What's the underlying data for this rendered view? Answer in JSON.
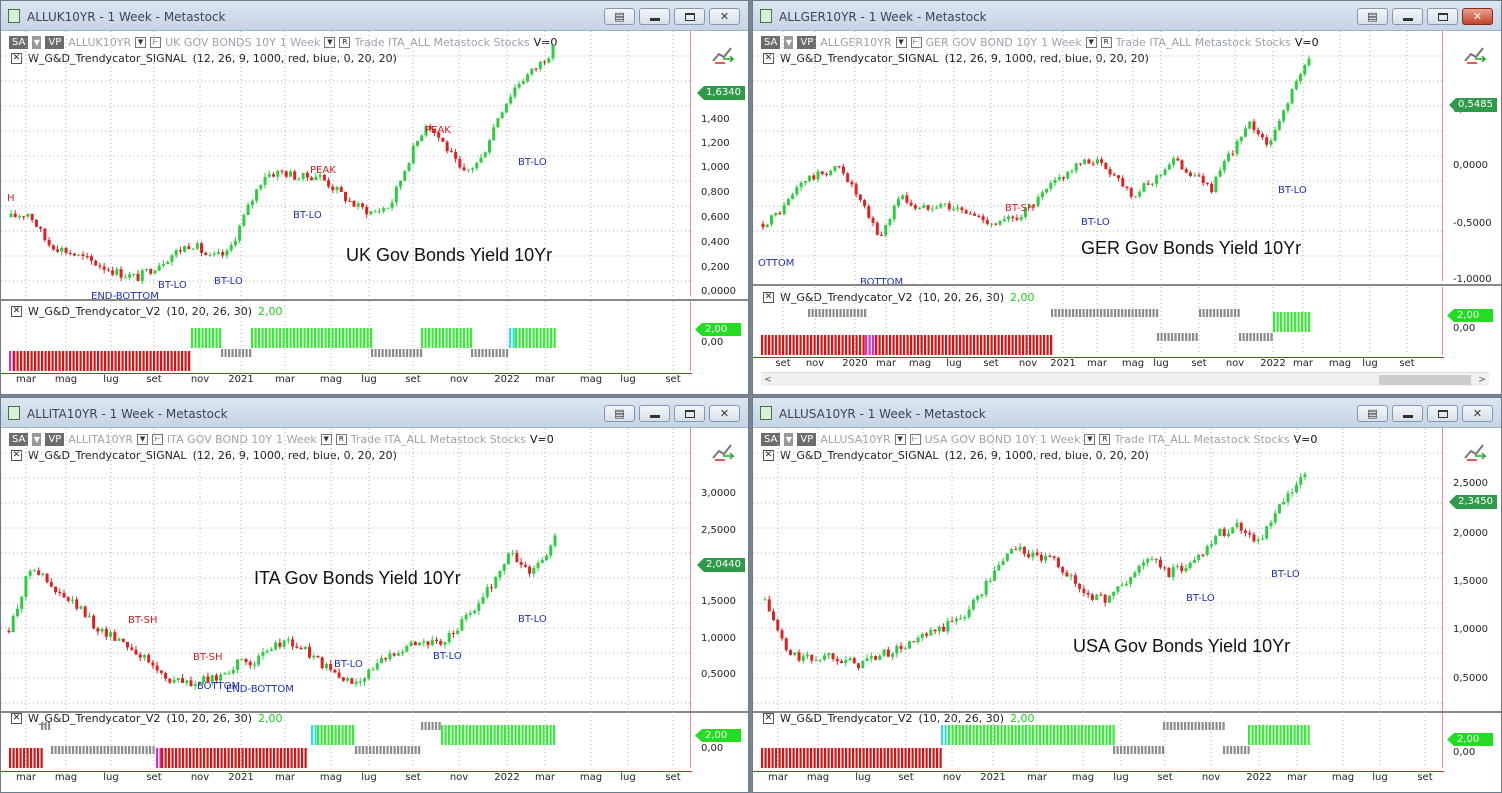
{
  "windows": [
    {
      "id": "uk",
      "title": "ALLUK10YR - 1 Week - Metastock",
      "symbol": "ALLUK10YR",
      "name": "UK GOV BONDS 10Y",
      "period": "1 Week",
      "tb_rest": "Trade  ITA_ALL   Metastock  Stocks",
      "v0": "V=0",
      "signal_name": "W_G&D_Trendycator_SIGNAL",
      "signal_params": "(12, 26, 9, 1000, red, blue, 0, 20, 20)",
      "ind_name": "W_G&D_Trendycator_V2",
      "ind_params": "(10, 20, 26, 30)",
      "ind_value": "2,00",
      "price_tag": "1,6340",
      "ind_tag": "2,00",
      "ind_zero": "0,00",
      "caption": "UK Gov Bonds Yield 10Yr",
      "y_labels": [
        "1,400",
        "1,200",
        "1,000",
        "0,800",
        "0,600",
        "0,400",
        "0,200",
        "0,0000"
      ],
      "x_labels": [
        "mar",
        "mag",
        "lug",
        "set",
        "nov",
        "2021",
        "mar",
        "mag",
        "lug",
        "set",
        "nov",
        "2022",
        "mar",
        "mag",
        "lug",
        "set"
      ],
      "signals": [
        {
          "text": "H",
          "color": "red"
        },
        {
          "text": "PEAK",
          "color": "red"
        },
        {
          "text": "PEAK",
          "color": "red"
        },
        {
          "text": "BT-LO",
          "color": "blue"
        },
        {
          "text": "BT-LO",
          "color": "blue"
        },
        {
          "text": "BT-LO",
          "color": "blue"
        },
        {
          "text": "BT-LO",
          "color": "blue"
        },
        {
          "text": "END-BOTTOM",
          "color": "blue"
        }
      ]
    },
    {
      "id": "ger",
      "title": "ALLGER10YR - 1 Week - Metastock",
      "symbol": "ALLGER10YR",
      "name": "GER GOV BOND 10Y",
      "period": "1 Week",
      "tb_rest": "Trade  ITA_ALL   Metastock  Stocks",
      "v0": "V=0",
      "signal_name": "W_G&D_Trendycator_SIGNAL",
      "signal_params": "(12, 26, 9, 1000, red, blue, 0, 20, 20)",
      "ind_name": "W_G&D_Trendycator_V2",
      "ind_params": "(10, 20, 26, 30)",
      "ind_value": "2,00",
      "price_tag": "0,5485",
      "ind_tag": "2,00",
      "ind_zero": "0,00",
      "caption": "GER Gov Bonds Yield 10Yr",
      "y_labels": [
        "0,5000",
        "0,0000",
        "-0,5000",
        "-1,0000"
      ],
      "x_labels": [
        "set",
        "nov",
        "2020",
        "mar",
        "mag",
        "lug",
        "set",
        "nov",
        "2021",
        "mar",
        "mag",
        "lug",
        "set",
        "nov",
        "2022",
        "mar",
        "mag",
        "lug",
        "set"
      ],
      "signals": [
        {
          "text": "BT-SH",
          "color": "red"
        },
        {
          "text": "BT-LO",
          "color": "blue"
        },
        {
          "text": "BT-LO",
          "color": "blue"
        },
        {
          "text": "OTTOM",
          "color": "blue"
        },
        {
          "text": "BOTTOM",
          "color": "blue"
        }
      ]
    },
    {
      "id": "ita",
      "title": "ALLITA10YR - 1 Week - Metastock",
      "symbol": "ALLITA10YR",
      "name": "ITA GOV BOND 10Y",
      "period": "1 Week",
      "tb_rest": "Trade  ITA_ALL   Metastock  Stocks",
      "v0": "V=0",
      "signal_name": "W_G&D_Trendycator_SIGNAL",
      "signal_params": "(12, 26, 9, 1000, red, blue, 0, 20, 20)",
      "ind_name": "W_G&D_Trendycator_V2",
      "ind_params": "(10, 20, 26, 30)",
      "ind_value": "2,00",
      "price_tag": "2,0440",
      "ind_tag": "2,00",
      "ind_zero": "0,00",
      "caption": "ITA Gov Bonds Yield 10Yr",
      "y_labels": [
        "3,0000",
        "2,5000",
        "1,5000",
        "1,0000",
        "0,5000"
      ],
      "x_labels": [
        "mar",
        "mag",
        "lug",
        "set",
        "nov",
        "2021",
        "mar",
        "mag",
        "lug",
        "set",
        "nov",
        "2022",
        "mar",
        "mag",
        "lug",
        "set"
      ],
      "signals": [
        {
          "text": "BT-SH",
          "color": "red"
        },
        {
          "text": "BT-SH",
          "color": "red"
        },
        {
          "text": "BOTTOM",
          "color": "blue"
        },
        {
          "text": "END-BOTTOM",
          "color": "blue"
        },
        {
          "text": "BT-LO",
          "color": "blue"
        },
        {
          "text": "BT-LO",
          "color": "blue"
        },
        {
          "text": "BT-LO",
          "color": "blue"
        }
      ]
    },
    {
      "id": "usa",
      "title": "ALLUSA10YR - 1 Week - Metastock",
      "symbol": "ALLUSA10YR",
      "name": "USA GOV BOND 10Y",
      "period": "1 Week",
      "tb_rest": "Trade  ITA_ALL   Metastock  Stocks",
      "v0": "V=0",
      "signal_name": "W_G&D_Trendycator_SIGNAL",
      "signal_params": "(12, 26, 9, 1000, red, blue, 0, 20, 20)",
      "ind_name": "W_G&D_Trendycator_V2",
      "ind_params": "(10, 20, 26, 30)",
      "ind_value": "2,00",
      "price_tag": "2,3450",
      "ind_tag": "2,00",
      "ind_zero": "0,00",
      "caption": "USA Gov Bonds Yield 10Yr",
      "y_labels": [
        "2,5000",
        "2,0000",
        "1,5000",
        "1,0000",
        "0,5000"
      ],
      "x_labels": [
        "mar",
        "mag",
        "lug",
        "set",
        "nov",
        "2021",
        "mar",
        "mag",
        "lug",
        "set",
        "nov",
        "2022",
        "mar",
        "mag",
        "lug",
        "set"
      ],
      "signals": [
        {
          "text": "BT-LO",
          "color": "blue"
        },
        {
          "text": "BT-LO",
          "color": "blue"
        }
      ]
    }
  ],
  "colors": {
    "up": "#2ecc40",
    "down": "#dd2222",
    "grid": "#b0b0b0",
    "ind_red": "#dd1111",
    "ind_green": "#33ee33",
    "ind_gray": "#8c8c8c",
    "ind_cyan": "#33dddd",
    "ind_magenta": "#cc33cc",
    "price_tag": "#2e9a4a"
  },
  "chart_data": [
    {
      "type": "candlestick",
      "window": "uk",
      "title": "UK Gov Bonds Yield 10Yr",
      "ylim": [
        0,
        1.75
      ],
      "x_range": [
        "2020-02",
        "2022-10"
      ],
      "series": [
        {
          "name": "ALLUK10YR",
          "values": [
            0.52,
            0.55,
            0.35,
            0.3,
            0.25,
            0.2,
            0.15,
            0.12,
            0.2,
            0.28,
            0.35,
            0.25,
            0.28,
            0.55,
            0.8,
            0.82,
            0.78,
            0.8,
            0.7,
            0.6,
            0.55,
            0.6,
            0.9,
            1.15,
            1.0,
            0.8,
            0.9,
            1.2,
            1.4,
            1.5,
            1.63
          ]
        }
      ]
    },
    {
      "type": "candlestick",
      "window": "ger",
      "title": "GER Gov Bonds Yield 10Yr",
      "ylim": [
        -1.0,
        0.75
      ],
      "x_range": [
        "2019-08",
        "2022-10"
      ],
      "series": [
        {
          "name": "ALLGER10YR",
          "values": [
            -0.6,
            -0.5,
            -0.3,
            -0.25,
            -0.2,
            -0.45,
            -0.7,
            -0.4,
            -0.5,
            -0.45,
            -0.5,
            -0.55,
            -0.6,
            -0.55,
            -0.45,
            -0.3,
            -0.2,
            -0.15,
            -0.25,
            -0.4,
            -0.3,
            -0.15,
            -0.25,
            -0.35,
            -0.1,
            0.1,
            -0.05,
            0.3,
            0.55
          ]
        }
      ]
    },
    {
      "type": "candlestick",
      "window": "ita",
      "title": "ITA Gov Bonds Yield 10Yr",
      "ylim": [
        0.3,
        3.2
      ],
      "x_range": [
        "2020-02",
        "2022-10"
      ],
      "series": [
        {
          "name": "ALLITA10YR",
          "values": [
            1.1,
            1.8,
            1.5,
            1.35,
            1.1,
            1.0,
            0.8,
            0.6,
            0.55,
            0.6,
            0.75,
            0.8,
            1.0,
            0.9,
            0.7,
            0.55,
            0.7,
            0.9,
            1.0,
            0.95,
            1.2,
            1.5,
            1.9,
            1.7,
            2.04
          ]
        }
      ]
    },
    {
      "type": "candlestick",
      "window": "usa",
      "title": "USA Gov Bonds Yield 10Yr",
      "ylim": [
        0.2,
        2.8
      ],
      "x_range": [
        "2020-02",
        "2022-10"
      ],
      "series": [
        {
          "name": "ALLUSA10YR",
          "values": [
            1.2,
            0.7,
            0.65,
            0.7,
            0.6,
            0.68,
            0.75,
            0.85,
            0.95,
            1.1,
            1.4,
            1.7,
            1.6,
            1.55,
            1.3,
            1.2,
            1.35,
            1.6,
            1.45,
            1.55,
            1.8,
            1.9,
            1.75,
            2.1,
            2.35
          ]
        }
      ]
    }
  ]
}
